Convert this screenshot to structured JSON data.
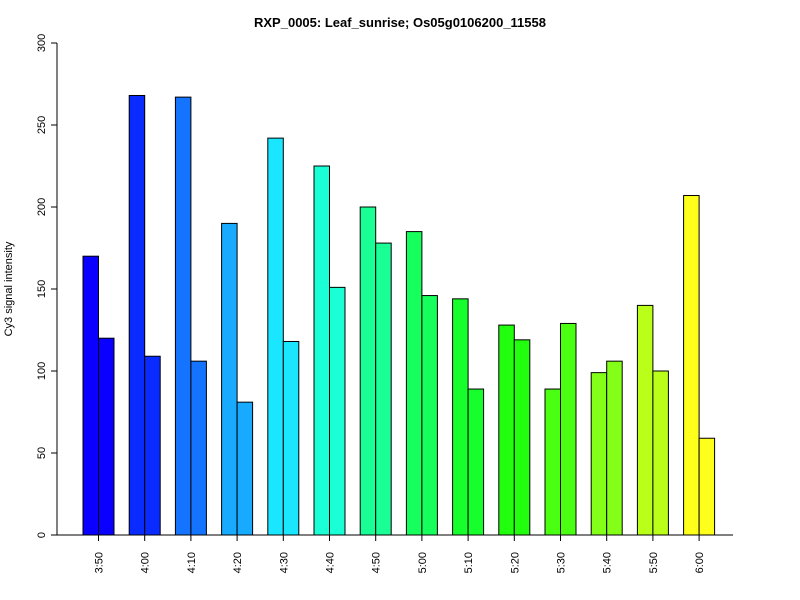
{
  "chart_data": {
    "type": "bar",
    "title": "RXP_0005: Leaf_sunrise; Os05g0106200_11558",
    "ylabel": "Cy3 signal intensity",
    "xlabel": "",
    "ylim": [
      0,
      300
    ],
    "yticks": [
      0,
      50,
      100,
      150,
      200,
      250,
      300
    ],
    "categories": [
      "3:50",
      "4:00",
      "4:10",
      "4:20",
      "4:30",
      "4:40",
      "4:50",
      "5:00",
      "5:10",
      "5:20",
      "5:30",
      "5:40",
      "5:50",
      "6:00"
    ],
    "colors": [
      "#0a00ff",
      "#0a2bff",
      "#1473ff",
      "#17aaff",
      "#1be6ff",
      "#1affd5",
      "#19ff96",
      "#17ff5c",
      "#16ff2c",
      "#22ff0e",
      "#4bff12",
      "#84ff17",
      "#baff1a",
      "#ffff1c"
    ],
    "series": [
      {
        "values": [
          170,
          268,
          267,
          190,
          242,
          225,
          200,
          185,
          144,
          128,
          89,
          99,
          140,
          207
        ]
      },
      {
        "values": [
          120,
          109,
          106,
          81,
          118,
          151,
          178,
          146,
          89,
          119,
          129,
          106,
          100,
          59
        ]
      }
    ]
  }
}
